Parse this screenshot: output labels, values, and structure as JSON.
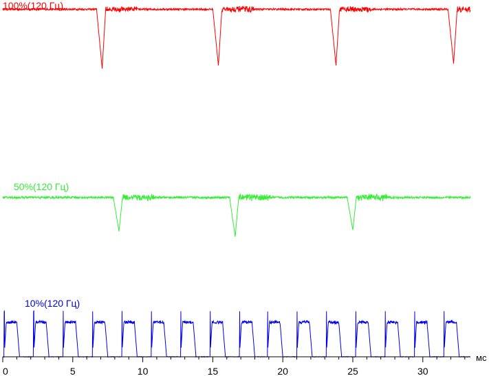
{
  "chart_data": {
    "type": "line",
    "x_unit": "мс",
    "x_ticks": [
      0,
      5,
      10,
      15,
      20,
      25,
      30
    ],
    "xlim": [
      0,
      33.4
    ],
    "grid": false,
    "legend": "none",
    "series": [
      {
        "name": "100%(120 Гц)",
        "color": "#ff0000",
        "baseline": 0.94,
        "noise_amplitude": 0.03,
        "dips": [
          {
            "x": 7.1,
            "min": 0.0
          },
          {
            "x": 15.4,
            "min": 0.05
          },
          {
            "x": 23.8,
            "min": 0.05
          },
          {
            "x": 32.2,
            "min": 0.08
          }
        ]
      },
      {
        "name": "50%(120 Гц)",
        "color": "#33ee33",
        "baseline": 0.88,
        "noise_amplitude": 0.05,
        "dips": [
          {
            "x": 8.3,
            "min": 0.12
          },
          {
            "x": 16.6,
            "min": 0.0
          },
          {
            "x": 25.0,
            "min": 0.15
          }
        ]
      },
      {
        "name": "10%(120 Гц)",
        "color": "#0000ee",
        "baseline": 0.0,
        "plateau": 0.72,
        "period": 2.08,
        "pulse_width": 1.1,
        "spike_height": 0.95,
        "pulse_starts": [
          0.1,
          2.2,
          4.3,
          6.4,
          8.5,
          10.6,
          12.7,
          14.8,
          16.9,
          18.9,
          21.0,
          23.1,
          25.2,
          27.3,
          29.4,
          31.5
        ]
      }
    ]
  }
}
